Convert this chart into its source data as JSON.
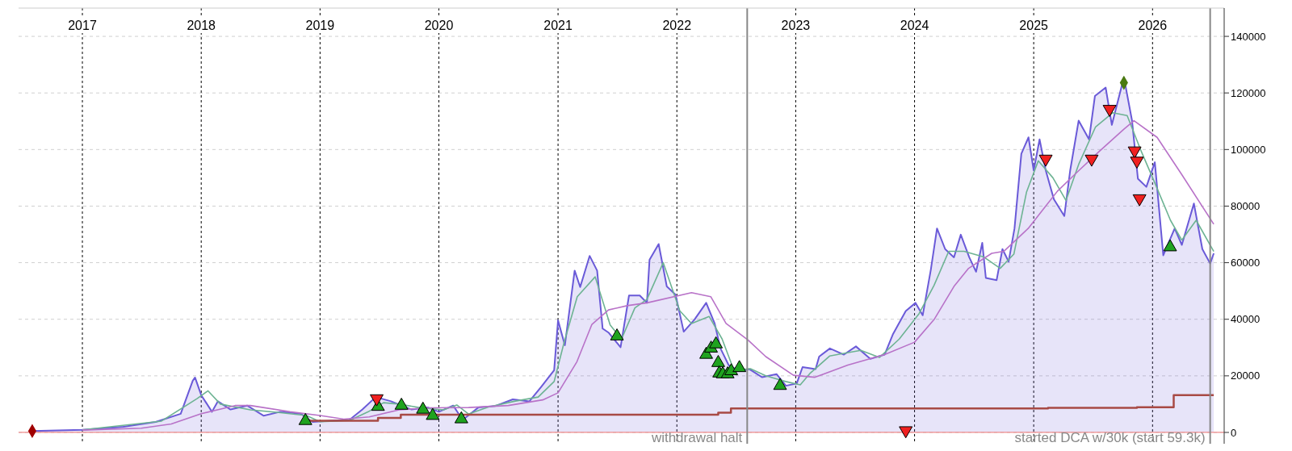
{
  "chart_data": {
    "type": "area",
    "xlim": [
      "2016-06-19",
      "2026-08-09"
    ],
    "xticks": [
      "2017",
      "2018",
      "2019",
      "2020",
      "2021",
      "2022",
      "2023",
      "2024",
      "2025",
      "2026"
    ],
    "ylim": [
      -4000,
      150000
    ],
    "yticks": [
      0,
      20000,
      40000,
      60000,
      80000,
      100000,
      120000,
      140000
    ],
    "grid": true,
    "ref_lines": [
      {
        "axis": "y",
        "value": 0,
        "color": "#f08c8c"
      },
      {
        "axis": "x",
        "value": "2022-08-05",
        "label": "withdrawal halt",
        "color": "#888888"
      },
      {
        "axis": "x",
        "value": "2026-06-27",
        "label": "started DCA w/30k (start 59.3k)",
        "color": "#888888"
      }
    ],
    "series": [
      {
        "color": "#6a5ad8",
        "x": [
          "2016-07-31",
          "2017-01-01",
          "2017-05-07",
          "2017-08-14",
          "2017-10-30",
          "2017-12-06",
          "2017-12-13",
          "2018-01-01",
          "2018-02-03",
          "2018-02-21",
          "2018-04-01",
          "2018-05-22",
          "2018-07-12",
          "2018-09-01",
          "2018-11-03",
          "2018-12-09",
          "2019-01-30",
          "2019-04-01",
          "2019-05-11",
          "2019-06-21",
          "2019-08-07",
          "2019-10-09",
          "2019-11-29",
          "2020-01-01",
          "2020-02-14",
          "2020-03-14",
          "2020-05-01",
          "2020-06-21",
          "2020-08-15",
          "2020-10-05",
          "2020-11-10",
          "2020-12-20",
          "2021-01-01",
          "2021-01-22",
          "2021-02-21",
          "2021-03-10",
          "2021-04-08",
          "2021-05-01",
          "2021-05-18",
          "2021-06-06",
          "2021-07-12",
          "2021-08-07",
          "2021-09-09",
          "2021-10-01",
          "2021-10-09",
          "2021-11-06",
          "2021-12-01",
          "2021-12-28",
          "2022-01-22",
          "2022-02-24",
          "2022-04-01",
          "2022-04-27",
          "2022-05-15",
          "2022-06-09",
          "2022-07-12",
          "2022-08-11",
          "2022-09-20",
          "2022-11-03",
          "2022-12-02",
          "2023-01-04",
          "2023-01-22",
          "2023-03-03",
          "2023-03-14",
          "2023-04-16",
          "2023-05-29",
          "2023-07-05",
          "2023-08-18",
          "2023-10-01",
          "2023-10-27",
          "2023-12-05",
          "2024-01-04",
          "2024-01-26",
          "2024-02-20",
          "2024-03-10",
          "2024-04-04",
          "2024-05-01",
          "2024-05-22",
          "2024-06-17",
          "2024-07-08",
          "2024-07-27",
          "2024-08-07",
          "2024-09-09",
          "2024-09-27",
          "2024-10-16",
          "2024-11-03",
          "2024-11-24",
          "2024-12-16",
          "2025-01-01",
          "2025-01-19",
          "2025-02-07",
          "2025-03-04",
          "2025-04-05",
          "2025-04-23",
          "2025-05-19",
          "2025-06-20",
          "2025-07-08",
          "2025-08-10",
          "2025-08-29",
          "2025-10-05",
          "2025-10-30",
          "2025-11-17",
          "2025-12-13",
          "2026-01-08",
          "2026-02-03",
          "2026-03-10",
          "2026-04-01",
          "2026-05-08",
          "2026-06-03",
          "2026-06-27",
          "2026-07-08"
        ],
        "values": [
          500,
          900,
          2000,
          3700,
          6600,
          18300,
          19400,
          13200,
          7300,
          11000,
          8100,
          9500,
          5900,
          7300,
          6600,
          3700,
          4100,
          4400,
          8100,
          12500,
          11000,
          8100,
          8800,
          7300,
          9500,
          4400,
          8800,
          9300,
          11700,
          11000,
          16100,
          22000,
          39600,
          30800,
          57200,
          51400,
          62400,
          57200,
          36700,
          35200,
          30100,
          48400,
          48400,
          45800,
          61000,
          66600,
          51600,
          48700,
          35600,
          39900,
          45800,
          38500,
          29700,
          23800,
          21700,
          22400,
          19500,
          20600,
          16500,
          17300,
          23100,
          22400,
          26800,
          29700,
          27500,
          30400,
          26000,
          27500,
          34800,
          42900,
          45800,
          41400,
          57500,
          72100,
          64800,
          61900,
          69900,
          61900,
          56800,
          67000,
          54600,
          53800,
          64800,
          60400,
          72100,
          98500,
          104300,
          92600,
          103600,
          92600,
          82400,
          76500,
          92600,
          110200,
          103600,
          118900,
          121900,
          108700,
          125500,
          110200,
          89700,
          86800,
          95500,
          62600,
          72100,
          66300,
          80900,
          64800,
          59700,
          63300
        ]
      },
      {
        "type": "line",
        "color": "#6db393",
        "x": [
          "2017-01-01",
          "2017-09-01",
          "2017-12-20",
          "2018-01-22",
          "2018-03-01",
          "2018-06-01",
          "2018-09-01",
          "2018-11-20",
          "2019-01-01",
          "2019-04-01",
          "2019-06-01",
          "2019-07-15",
          "2019-09-01",
          "2019-11-01",
          "2020-01-15",
          "2020-02-25",
          "2020-04-01",
          "2020-06-01",
          "2020-08-20",
          "2020-11-01",
          "2020-12-20",
          "2021-01-20",
          "2021-03-01",
          "2021-04-25",
          "2021-06-10",
          "2021-07-15",
          "2021-08-25",
          "2021-10-01",
          "2021-11-20",
          "2022-01-10",
          "2022-02-15",
          "2022-04-10",
          "2022-05-20",
          "2022-06-25",
          "2022-08-15",
          "2022-10-01",
          "2022-12-01",
          "2023-01-15",
          "2023-02-15",
          "2023-04-15",
          "2023-06-01",
          "2023-07-20",
          "2023-09-15",
          "2023-11-15",
          "2024-01-15",
          "2024-03-01",
          "2024-04-15",
          "2024-06-01",
          "2024-08-01",
          "2024-09-20",
          "2024-11-01",
          "2024-12-10",
          "2025-01-15",
          "2025-03-01",
          "2025-04-10",
          "2025-05-20",
          "2025-07-10",
          "2025-09-01",
          "2025-10-15",
          "2025-11-25",
          "2026-01-05",
          "2026-02-25",
          "2026-04-01",
          "2026-05-15",
          "2026-07-08"
        ],
        "values": [
          900,
          4000,
          12000,
          14700,
          10000,
          8000,
          7000,
          6000,
          3800,
          4200,
          7500,
          10500,
          10000,
          8800,
          8000,
          9700,
          6500,
          9000,
          11000,
          12500,
          18000,
          32000,
          48000,
          55000,
          38000,
          33000,
          44000,
          47000,
          60000,
          43000,
          38500,
          41000,
          33000,
          22000,
          22500,
          20000,
          18000,
          16800,
          21000,
          27000,
          28000,
          29000,
          26500,
          33000,
          42000,
          52000,
          64000,
          64000,
          62000,
          58000,
          63000,
          85000,
          96000,
          90000,
          82000,
          95000,
          108000,
          113000,
          112000,
          100000,
          89000,
          75000,
          68000,
          75000,
          64000
        ]
      },
      {
        "type": "line",
        "color": "#b872c8",
        "x": [
          "2017-01-01",
          "2017-07-01",
          "2017-10-01",
          "2018-01-01",
          "2018-04-15",
          "2018-06-01",
          "2018-10-01",
          "2019-01-01",
          "2019-03-15",
          "2019-06-01",
          "2019-09-01",
          "2019-12-01",
          "2020-04-01",
          "2020-08-01",
          "2020-11-15",
          "2021-01-01",
          "2021-02-28",
          "2021-04-15",
          "2021-06-05",
          "2021-08-01",
          "2021-10-01",
          "2022-02-15",
          "2022-04-15",
          "2022-06-01",
          "2022-08-08",
          "2022-10-01",
          "2022-12-25",
          "2023-03-01",
          "2023-06-10",
          "2023-10-01",
          "2024-01-01",
          "2024-03-01",
          "2024-05-01",
          "2024-06-15",
          "2024-08-25",
          "2024-10-01",
          "2024-12-15",
          "2025-03-15",
          "2025-05-20",
          "2025-07-20",
          "2025-10-05",
          "2025-11-05",
          "2026-01-15",
          "2026-04-01",
          "2026-07-08"
        ],
        "values": [
          800,
          1500,
          3000,
          6600,
          9500,
          9500,
          7300,
          6000,
          4700,
          5500,
          8000,
          8700,
          8800,
          9500,
          11500,
          14000,
          25000,
          38200,
          43300,
          44800,
          45800,
          49400,
          48000,
          38500,
          32600,
          26800,
          20200,
          19500,
          23800,
          27500,
          31900,
          39900,
          51600,
          58000,
          63300,
          64000,
          72100,
          85300,
          92600,
          99200,
          107200,
          110200,
          104300,
          91100,
          73600
        ]
      },
      {
        "type": "step",
        "color": "#a84a45",
        "x": [
          "2018-11-15",
          "2019-06-28",
          "2019-09-06",
          "2022-05-08",
          "2022-06-16",
          "2025-02-14",
          "2025-11-14",
          "2026-03-07",
          "2026-07-08"
        ],
        "values": [
          4100,
          5100,
          6300,
          7000,
          8500,
          8700,
          8900,
          13200,
          13200
        ]
      },
      {
        "type": "scatter",
        "marker": "triangle",
        "color": "#1fa31f",
        "x": [
          "2018-11-17",
          "2019-06-28",
          "2019-09-08",
          "2019-11-13",
          "2019-12-13",
          "2020-03-10",
          "2021-07-01",
          "2022-04-01",
          "2022-04-16",
          "2022-05-01",
          "2022-05-08",
          "2022-05-11",
          "2022-05-22",
          "2022-06-06",
          "2022-06-17",
          "2022-07-12",
          "2022-11-14",
          "2026-02-24"
        ],
        "values": [
          4100,
          9100,
          9500,
          8100,
          5900,
          4700,
          34000,
          27500,
          29700,
          31200,
          24600,
          20900,
          20600,
          20600,
          21700,
          22800,
          16500,
          65500
        ]
      },
      {
        "type": "scatter",
        "marker": "triangle-down",
        "color": "#f02020",
        "x": [
          "2019-06-24",
          "2023-12-05",
          "2025-02-07",
          "2025-06-28",
          "2025-08-22",
          "2025-11-07",
          "2025-11-14",
          "2025-11-22"
        ],
        "values": [
          12000,
          700,
          96700,
          96700,
          114300,
          99600,
          96000,
          82700
        ]
      },
      {
        "type": "scatter",
        "marker": "diamond",
        "color": "#a00000",
        "x": [
          "2016-07-31"
        ],
        "values": [
          500
        ]
      },
      {
        "type": "scatter",
        "marker": "diamond",
        "color": "#4a7a10",
        "x": [
          "2025-10-05"
        ],
        "values": [
          123600
        ]
      }
    ]
  }
}
